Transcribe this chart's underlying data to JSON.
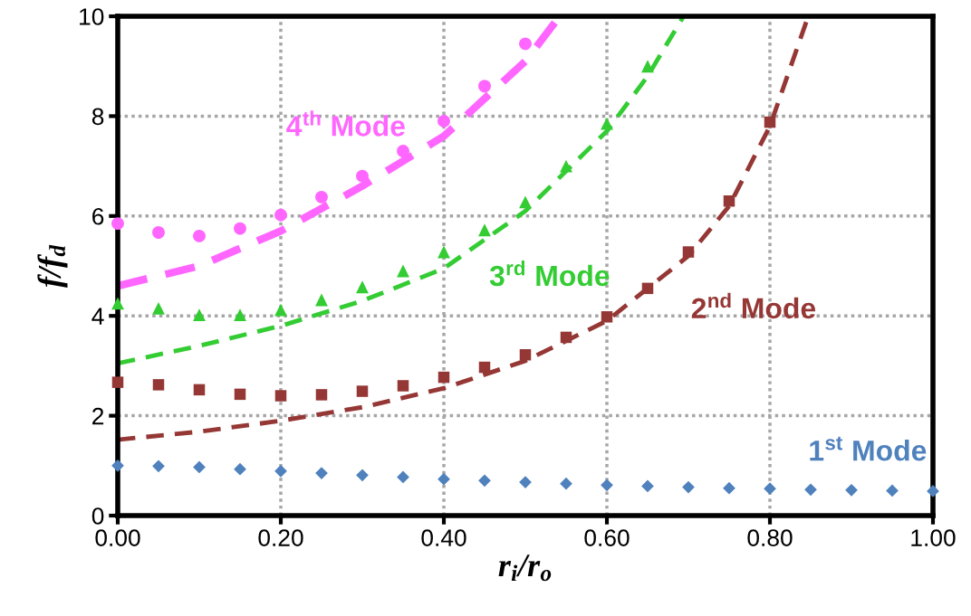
{
  "chart_data": {
    "type": "scatter",
    "xlabel": "r$_{i}$/r$_{o}$",
    "ylabel": "f/f$_{d}$",
    "xlim": [
      0,
      1
    ],
    "ylim": [
      0,
      10
    ],
    "xticks": [
      {
        "value": 0,
        "label": "0.00"
      },
      {
        "value": 0.2,
        "label": "0.20"
      },
      {
        "value": 0.4,
        "label": "0.40"
      },
      {
        "value": 0.6,
        "label": "0.60"
      },
      {
        "value": 0.8,
        "label": "0.80"
      },
      {
        "value": 1,
        "label": "1.00"
      }
    ],
    "yticks": [
      0,
      2,
      4,
      6,
      8,
      10
    ],
    "grid": true,
    "legend": false,
    "series": [
      {
        "name": "1$^{st}$ Mode",
        "marker": "diamond",
        "color": "#4f81bd",
        "x": [
          0,
          0.05,
          0.1,
          0.15,
          0.2,
          0.25,
          0.3,
          0.35,
          0.4,
          0.45,
          0.5,
          0.55,
          0.6,
          0.65,
          0.7,
          0.75,
          0.8,
          0.85,
          0.9,
          0.95,
          1.0
        ],
        "values": [
          1.0,
          0.99,
          0.97,
          0.93,
          0.89,
          0.85,
          0.81,
          0.77,
          0.73,
          0.7,
          0.67,
          0.64,
          0.61,
          0.59,
          0.57,
          0.55,
          0.54,
          0.52,
          0.51,
          0.5,
          0.49
        ]
      },
      {
        "name": "2$^{nd}$ Mode",
        "marker": "square",
        "color": "#953735",
        "x": [
          0,
          0.05,
          0.1,
          0.15,
          0.2,
          0.25,
          0.3,
          0.35,
          0.4,
          0.45,
          0.5,
          0.55,
          0.6,
          0.65,
          0.7,
          0.75,
          0.8
        ],
        "values": [
          2.67,
          2.62,
          2.52,
          2.43,
          2.4,
          2.42,
          2.49,
          2.6,
          2.77,
          2.97,
          3.22,
          3.57,
          3.98,
          4.55,
          5.28,
          6.3,
          7.88
        ]
      },
      {
        "name": "3$^{rd}$ Mode",
        "marker": "triangle",
        "color": "#33cc33",
        "x": [
          0,
          0.05,
          0.1,
          0.15,
          0.2,
          0.25,
          0.3,
          0.35,
          0.4,
          0.45,
          0.5,
          0.55,
          0.6,
          0.65
        ],
        "values": [
          4.25,
          4.15,
          4.02,
          4.02,
          4.12,
          4.32,
          4.58,
          4.9,
          5.28,
          5.72,
          6.28,
          7.0,
          7.85,
          9.0
        ]
      },
      {
        "name": "4$^{th}$ Mode",
        "marker": "circle",
        "color": "#ff66ff",
        "x": [
          0,
          0.05,
          0.1,
          0.15,
          0.2,
          0.25,
          0.3,
          0.35,
          0.4,
          0.45,
          0.5
        ],
        "values": [
          5.85,
          5.67,
          5.6,
          5.75,
          6.02,
          6.38,
          6.8,
          7.3,
          7.9,
          8.6,
          9.45
        ]
      },
      {
        "type": "line",
        "line_style": "dashed",
        "color": "#953735",
        "x": [
          0,
          0.1,
          0.2,
          0.3,
          0.4,
          0.5,
          0.6,
          0.7,
          0.75,
          0.8,
          0.847
        ],
        "values": [
          1.52,
          1.68,
          1.9,
          2.17,
          2.55,
          3.1,
          3.9,
          5.2,
          6.2,
          7.8,
          10.0
        ]
      },
      {
        "type": "line",
        "line_style": "dashed",
        "color": "#33cc33",
        "x": [
          0,
          0.1,
          0.2,
          0.3,
          0.4,
          0.5,
          0.6,
          0.65,
          0.694
        ],
        "values": [
          3.05,
          3.4,
          3.8,
          4.3,
          4.95,
          6.1,
          7.7,
          8.8,
          10.0
        ]
      },
      {
        "type": "line",
        "line_style": "dashed",
        "color": "#ff66ff",
        "x": [
          0,
          0.1,
          0.2,
          0.3,
          0.4,
          0.5,
          0.542
        ],
        "values": [
          4.6,
          5.0,
          5.7,
          6.6,
          7.6,
          9.1,
          10.0
        ]
      }
    ]
  }
}
